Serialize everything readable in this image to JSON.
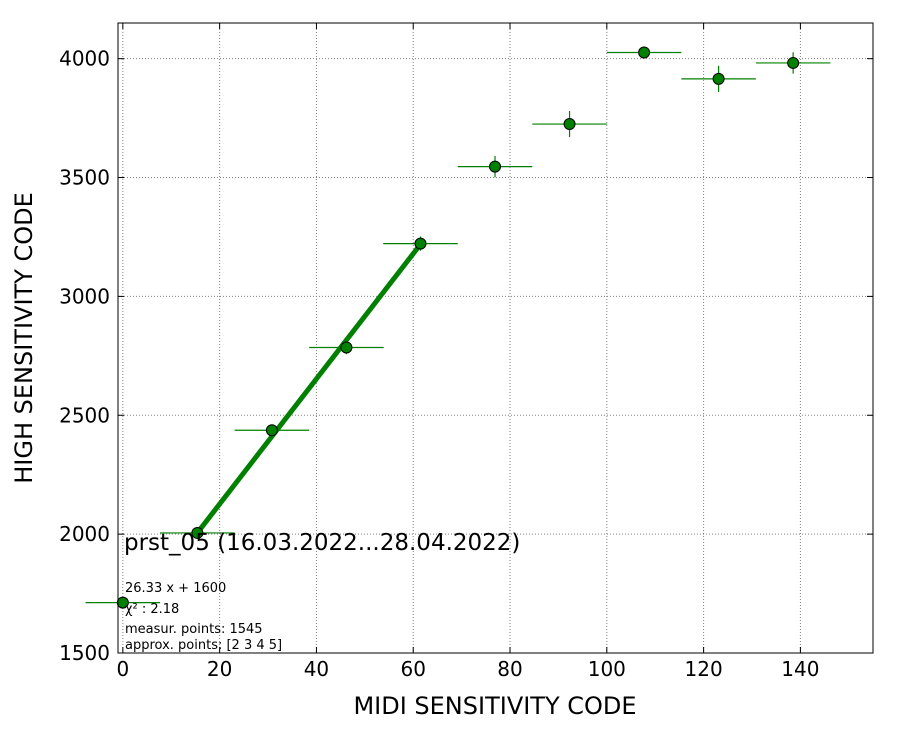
{
  "chart_data": {
    "type": "scatter",
    "xlabel": "MIDI SENSITIVITY CODE",
    "ylabel": "HIGH SENSITIVITY CODE",
    "xlim": [
      -1,
      155
    ],
    "ylim": [
      1500,
      4150
    ],
    "xticks": [
      0,
      20,
      40,
      60,
      80,
      100,
      120,
      140
    ],
    "yticks": [
      1500,
      2000,
      2500,
      3000,
      3500,
      4000
    ],
    "grid": true,
    "colors": {
      "marker": "#008000",
      "fit_line": "#008000",
      "marker_edge": "#000000",
      "grid": "#808080"
    },
    "points": [
      {
        "x": 0,
        "y": 1712,
        "xerr": 7.7,
        "yerr": 0
      },
      {
        "x": 15.4,
        "y": 2005,
        "xerr": 7.7,
        "yerr": 10
      },
      {
        "x": 30.8,
        "y": 2437,
        "xerr": 7.7,
        "yerr": 15
      },
      {
        "x": 46.2,
        "y": 2785,
        "xerr": 7.7,
        "yerr": 28
      },
      {
        "x": 61.5,
        "y": 3222,
        "xerr": 7.7,
        "yerr": 30
      },
      {
        "x": 76.9,
        "y": 3546,
        "xerr": 7.7,
        "yerr": 45
      },
      {
        "x": 92.3,
        "y": 3725,
        "xerr": 7.7,
        "yerr": 55
      },
      {
        "x": 107.7,
        "y": 4026,
        "xerr": 7.7,
        "yerr": 10
      },
      {
        "x": 123.1,
        "y": 3915,
        "xerr": 7.7,
        "yerr": 55
      },
      {
        "x": 138.5,
        "y": 3982,
        "xerr": 7.7,
        "yerr": 45
      }
    ],
    "fit": {
      "slope": 26.33,
      "intercept": 1600,
      "x_range": [
        15.4,
        61.5
      ]
    },
    "annotations": {
      "title": "prst_05 (16.03.2022...28.04.2022)",
      "fit_label": "26.33 x + 1600",
      "chi_label": "χ² : 2.18",
      "measur_label": "measur. points: 1545",
      "approx_label": "approx. points: [2 3 4 5]"
    }
  }
}
